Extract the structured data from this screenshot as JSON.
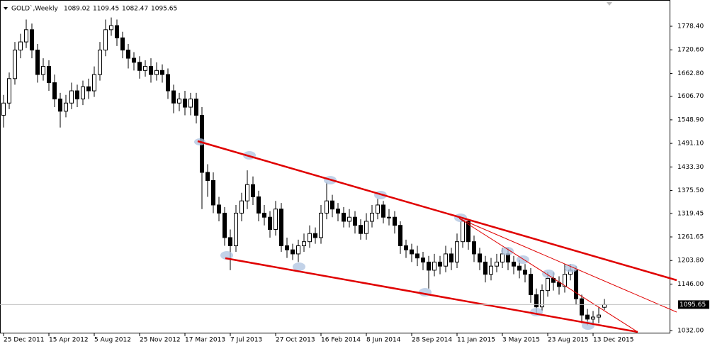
{
  "chart_data": {
    "type": "candlestick",
    "title": "GOLD`,Weekly",
    "categories": [
      "25 Dec 2011",
      null,
      null,
      null,
      null,
      null,
      null,
      null,
      "15 Apr 2012",
      null,
      null,
      null,
      null,
      null,
      null,
      null,
      "5 Aug 2012",
      null,
      null,
      null,
      null,
      null,
      null,
      null,
      "25 Nov 2012",
      null,
      null,
      null,
      null,
      null,
      null,
      null,
      "17 Mar 2013",
      null,
      null,
      null,
      null,
      null,
      null,
      null,
      "7 Jul 2013",
      null,
      null,
      null,
      null,
      null,
      null,
      null,
      "27 Oct 2013",
      null,
      null,
      null,
      null,
      null,
      null,
      null,
      "16 Feb 2014",
      null,
      null,
      null,
      null,
      null,
      null,
      null,
      "8 Jun 2014",
      null,
      null,
      null,
      null,
      null,
      null,
      null,
      "28 Sep 2014",
      null,
      null,
      null,
      null,
      null,
      null,
      null,
      "11 Jan 2015",
      null,
      null,
      null,
      null,
      null,
      null,
      null,
      "3 May 2015",
      null,
      null,
      null,
      null,
      null,
      null,
      null,
      "23 Aug 2015",
      null,
      null,
      null,
      null,
      null,
      null,
      null,
      "13 Dec 2015",
      null,
      null
    ],
    "open": [
      1560,
      1590,
      1650,
      1720,
      1740,
      1770,
      1720,
      1660,
      1680,
      1640,
      1600,
      1570,
      1590,
      1620,
      1600,
      1630,
      1620,
      1660,
      1720,
      1770,
      1780,
      1750,
      1720,
      1700,
      1690,
      1670,
      1680,
      1660,
      1670,
      1660,
      1620,
      1590,
      1600,
      1580,
      1600,
      1560,
      1420,
      1400,
      1340,
      1320,
      1260,
      1240,
      1320,
      1350,
      1390,
      1360,
      1320,
      1310,
      1280,
      1330,
      1240,
      1230,
      1220,
      1240,
      1250,
      1270,
      1260,
      1320,
      1350,
      1330,
      1320,
      1300,
      1310,
      1290,
      1270,
      1300,
      1320,
      1340,
      1310,
      1310,
      1290,
      1240,
      1230,
      1220,
      1210,
      1200,
      1180,
      1200,
      1190,
      1220,
      1200,
      1250,
      1300,
      1250,
      1220,
      1200,
      1170,
      1190,
      1200,
      1220,
      1200,
      1190,
      1180,
      1170,
      1120,
      1090,
      1130,
      1160,
      1150,
      1140,
      1170,
      1180,
      1110,
      1070,
      1060,
      1065,
      1089.02
    ],
    "high": [
      1610,
      1665,
      1740,
      1760,
      1795,
      1785,
      1735,
      1700,
      1695,
      1660,
      1615,
      1610,
      1640,
      1635,
      1645,
      1650,
      1680,
      1740,
      1795,
      1800,
      1795,
      1765,
      1735,
      1715,
      1705,
      1695,
      1700,
      1690,
      1685,
      1675,
      1635,
      1615,
      1620,
      1615,
      1615,
      1580,
      1440,
      1420,
      1360,
      1335,
      1280,
      1340,
      1370,
      1425,
      1410,
      1375,
      1340,
      1325,
      1350,
      1345,
      1260,
      1245,
      1255,
      1270,
      1290,
      1285,
      1340,
      1395,
      1365,
      1345,
      1335,
      1330,
      1325,
      1305,
      1320,
      1340,
      1355,
      1350,
      1330,
      1325,
      1300,
      1255,
      1245,
      1240,
      1225,
      1215,
      1220,
      1215,
      1240,
      1235,
      1270,
      1310,
      1305,
      1265,
      1235,
      1215,
      1210,
      1220,
      1235,
      1235,
      1215,
      1205,
      1195,
      1185,
      1135,
      1145,
      1175,
      1175,
      1165,
      1195,
      1195,
      1190,
      1120,
      1085,
      1080,
      1090,
      1109.45
    ],
    "low": [
      1530,
      1575,
      1635,
      1700,
      1725,
      1700,
      1640,
      1645,
      1620,
      1580,
      1530,
      1555,
      1575,
      1580,
      1585,
      1600,
      1605,
      1645,
      1705,
      1755,
      1730,
      1700,
      1675,
      1670,
      1650,
      1655,
      1640,
      1645,
      1640,
      1600,
      1565,
      1570,
      1560,
      1560,
      1540,
      1330,
      1360,
      1320,
      1300,
      1240,
      1180,
      1225,
      1300,
      1330,
      1340,
      1300,
      1290,
      1260,
      1265,
      1225,
      1210,
      1205,
      1200,
      1225,
      1235,
      1245,
      1245,
      1305,
      1310,
      1300,
      1285,
      1285,
      1270,
      1255,
      1255,
      1285,
      1305,
      1295,
      1290,
      1270,
      1220,
      1210,
      1200,
      1190,
      1180,
      1135,
      1165,
      1170,
      1175,
      1180,
      1185,
      1235,
      1230,
      1200,
      1180,
      1150,
      1155,
      1175,
      1185,
      1180,
      1170,
      1160,
      1150,
      1100,
      1075,
      1080,
      1115,
      1130,
      1120,
      1125,
      1155,
      1095,
      1050,
      1045,
      1045,
      1050,
      1082.47
    ],
    "close": [
      1590,
      1650,
      1720,
      1740,
      1770,
      1720,
      1660,
      1680,
      1640,
      1600,
      1570,
      1590,
      1620,
      1600,
      1630,
      1620,
      1660,
      1720,
      1770,
      1780,
      1750,
      1720,
      1700,
      1690,
      1670,
      1680,
      1660,
      1670,
      1660,
      1620,
      1590,
      1600,
      1580,
      1600,
      1560,
      1420,
      1400,
      1340,
      1320,
      1260,
      1240,
      1320,
      1350,
      1390,
      1360,
      1320,
      1310,
      1280,
      1330,
      1240,
      1230,
      1220,
      1240,
      1250,
      1270,
      1260,
      1320,
      1350,
      1330,
      1320,
      1300,
      1310,
      1290,
      1270,
      1300,
      1320,
      1340,
      1310,
      1310,
      1290,
      1240,
      1230,
      1220,
      1210,
      1200,
      1180,
      1200,
      1190,
      1220,
      1200,
      1250,
      1300,
      1250,
      1220,
      1200,
      1170,
      1190,
      1200,
      1220,
      1200,
      1190,
      1180,
      1170,
      1120,
      1090,
      1130,
      1160,
      1150,
      1140,
      1170,
      1180,
      1110,
      1070,
      1060,
      1065,
      1070,
      1095.65
    ],
    "ylim": [
      1025.0,
      1837.6
    ],
    "yticks": [
      {
        "value": 1778.4,
        "label": "1778.40"
      },
      {
        "value": 1720.6,
        "label": "1720.60"
      },
      {
        "value": 1662.8,
        "label": "1662.80"
      },
      {
        "value": 1606.7,
        "label": "1606.70"
      },
      {
        "value": 1548.9,
        "label": "1548.90"
      },
      {
        "value": 1491.1,
        "label": "1491.10"
      },
      {
        "value": 1433.3,
        "label": "1433.30"
      },
      {
        "value": 1375.5,
        "label": "1375.50"
      },
      1319.45,
      1261.65,
      {
        "value": 1203.8,
        "label": "1203.80"
      },
      {
        "value": 1146,
        "label": "1146.00"
      },
      {
        "value": 1032,
        "label": "1032.00"
      }
    ],
    "grid": false
  }
}
